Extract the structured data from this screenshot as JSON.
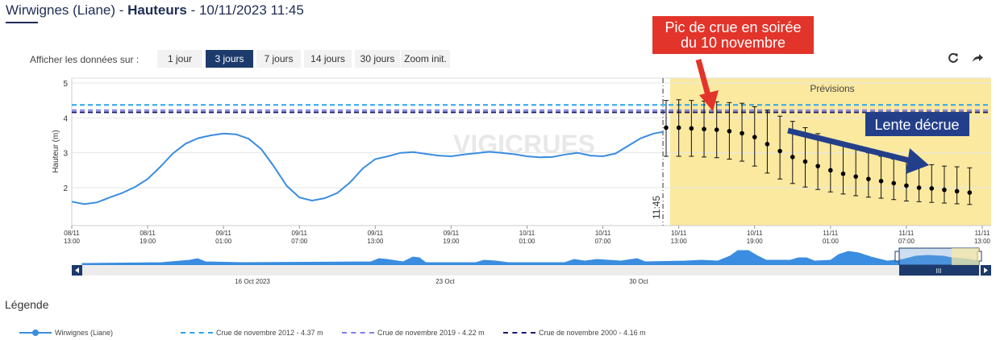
{
  "header": {
    "station": "Wirwignes (Liane)",
    "sep1": " - ",
    "section": "Hauteurs",
    "sep2": " - ",
    "datetime": "10/11/2023 11:45"
  },
  "controls": {
    "label": "Afficher les données sur :",
    "buttons": [
      "1 jour",
      "3 jours",
      "7 jours",
      "14 jours",
      "30 jours",
      "Zoom init."
    ],
    "active": "3 jours"
  },
  "icons": {
    "refresh": "refresh-icon",
    "share": "share-arrow-icon"
  },
  "colors": {
    "observed": "#3a8de0",
    "forecast_bg": "#fbe9a0",
    "crue2012": "#2aa4e8",
    "crue2019": "#7e7ef0",
    "crue2000": "#1a1a70",
    "annotation_red": "#e2342a",
    "annotation_blue": "#243f8a",
    "navigator_fill": "#3a8de0",
    "navigator_dark": "#1c3a6b"
  },
  "annotations": {
    "peak": "Pic de crue en soirée du 10 novembre",
    "peak_lines": [
      "Pic de crue en soirée",
      "du 10 novembre"
    ],
    "decline": "Lente décrue"
  },
  "watermark": "VIGICRUES",
  "forecast_label": "Prévisions",
  "now_label": "11:45",
  "navigator": {
    "labels": [
      "16 Oct 2023",
      "23 Oct",
      "30 Oct"
    ],
    "scroll_grip": "III"
  },
  "legend": {
    "title": "Légende",
    "items": [
      "Wirwignes (Liane)",
      "Crue de novembre 2012 - 4.37 m",
      "Crue de novembre 2019 - 4.22 m",
      "Crue de novembre 2000 - 4.16 m"
    ]
  },
  "chart_data": {
    "type": "line",
    "ylabel": "Hauteur (m)",
    "ylim": [
      1.5,
      5.1
    ],
    "yticks": [
      2,
      3,
      4,
      5
    ],
    "x_tick_labels": [
      [
        "08/11",
        "13:00"
      ],
      [
        "08/11",
        "19:00"
      ],
      [
        "09/11",
        "01:00"
      ],
      [
        "09/11",
        "07:00"
      ],
      [
        "09/11",
        "13:00"
      ],
      [
        "09/11",
        "19:00"
      ],
      [
        "10/11",
        "01:00"
      ],
      [
        "10/11",
        "07:00"
      ],
      [
        "10/11",
        "13:00"
      ],
      [
        "10/11",
        "19:00"
      ],
      [
        "11/11",
        "01:00"
      ],
      [
        "11/11",
        "07:00"
      ],
      [
        "11/11",
        "13:00"
      ]
    ],
    "x_range_hours": [
      0,
      72
    ],
    "now_hour": 46.75,
    "thresholds": [
      {
        "name": "Crue de novembre 2012",
        "value": 4.37
      },
      {
        "name": "Crue de novembre 2019",
        "value": 4.22
      },
      {
        "name": "Crue de novembre 2000",
        "value": 4.16
      }
    ],
    "series": [
      {
        "name": "Wirwignes (Liane)",
        "x_hours": [
          0,
          1,
          2,
          3,
          4,
          5,
          6,
          7,
          8,
          9,
          10,
          11,
          12,
          13,
          14,
          15,
          16,
          17,
          18,
          19,
          20,
          21,
          22,
          23,
          24,
          25,
          26,
          27,
          28,
          29,
          30,
          31,
          32,
          33,
          34,
          35,
          36,
          37,
          38,
          39,
          40,
          41,
          42,
          43,
          44,
          45,
          46,
          46.75
        ],
        "values": [
          1.6,
          1.53,
          1.58,
          1.72,
          1.85,
          2.02,
          2.25,
          2.6,
          2.98,
          3.26,
          3.42,
          3.5,
          3.55,
          3.53,
          3.4,
          3.1,
          2.6,
          2.05,
          1.72,
          1.63,
          1.7,
          1.85,
          2.15,
          2.55,
          2.82,
          2.9,
          3.0,
          3.02,
          2.97,
          2.92,
          2.9,
          2.95,
          2.99,
          3.03,
          3.0,
          2.96,
          2.9,
          2.87,
          2.88,
          2.95,
          3.0,
          2.92,
          2.9,
          2.98,
          3.2,
          3.42,
          3.55,
          3.6
        ]
      },
      {
        "name": "Prévisions",
        "x_hours": [
          47,
          48,
          49,
          50,
          51,
          52,
          53,
          54,
          55,
          56,
          57,
          58,
          59,
          60,
          61,
          62,
          63,
          64,
          65,
          66,
          67,
          68,
          69,
          70,
          71
        ],
        "values": [
          3.72,
          3.72,
          3.7,
          3.68,
          3.66,
          3.62,
          3.56,
          3.45,
          3.25,
          3.05,
          2.88,
          2.75,
          2.62,
          2.5,
          2.4,
          2.32,
          2.25,
          2.19,
          2.13,
          2.06,
          2.0,
          1.98,
          1.94,
          1.9,
          1.86
        ],
        "low": [
          2.9,
          2.9,
          2.9,
          2.88,
          2.86,
          2.82,
          2.76,
          2.62,
          2.42,
          2.25,
          2.12,
          2.02,
          1.95,
          1.88,
          1.82,
          1.77,
          1.73,
          1.7,
          1.66,
          1.62,
          1.6,
          1.58,
          1.56,
          1.54,
          1.52
        ],
        "high": [
          4.5,
          4.52,
          4.5,
          4.48,
          4.46,
          4.44,
          4.42,
          4.32,
          4.22,
          4.05,
          3.9,
          3.72,
          3.55,
          3.38,
          3.25,
          3.12,
          3.0,
          2.9,
          2.82,
          2.75,
          2.7,
          2.66,
          2.62,
          2.6,
          2.57
        ]
      }
    ]
  }
}
